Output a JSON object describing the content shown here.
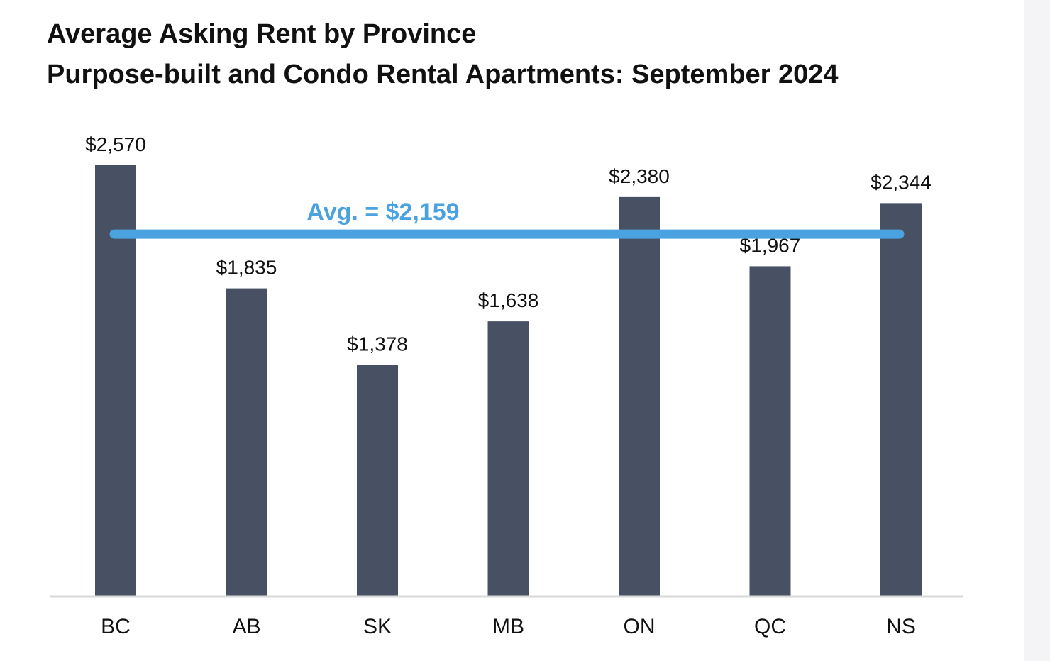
{
  "chart_data": {
    "type": "bar",
    "title": "Average Asking Rent by Province",
    "subtitle": "Purpose-built and Condo Rental Apartments: September 2024",
    "categories": [
      "BC",
      "AB",
      "SK",
      "MB",
      "ON",
      "QC",
      "NS"
    ],
    "values": [
      2570,
      1835,
      1378,
      1638,
      2380,
      1967,
      2344
    ],
    "value_labels": [
      "$2,570",
      "$1,835",
      "$1,378",
      "$1,638",
      "$2,380",
      "$1,967",
      "$2,344"
    ],
    "average": {
      "value": 2159,
      "label": "Avg. = $2,159",
      "color": "#4aa3e0"
    },
    "xlabel": "",
    "ylabel": "",
    "ylim": [
      0,
      2570
    ],
    "grid": false,
    "legend": "none",
    "bar_color": "#475163",
    "axis_color": "#d9d9d9"
  }
}
